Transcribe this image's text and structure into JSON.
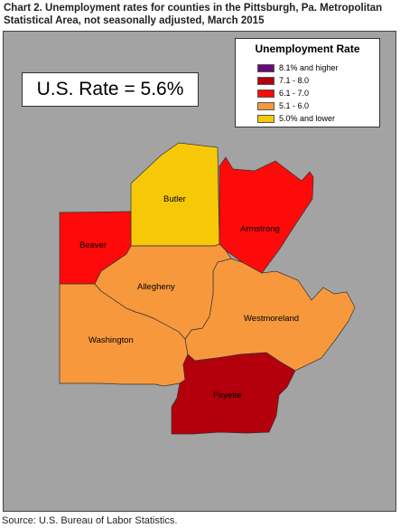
{
  "title": "Chart 2. Unemployment rates for counties in the Pittsburgh, Pa. Metropolitan Statistical Area, not seasonally adjusted, March 2015",
  "us_rate_label": "U.S. Rate = 5.6%",
  "legend": {
    "title": "Unemployment Rate",
    "items": [
      {
        "label": "8.1% and higher",
        "color": "#6a0a7a"
      },
      {
        "label": "7.1 - 8.0",
        "color": "#b3000c"
      },
      {
        "label": "6.1 - 7.0",
        "color": "#ff0a0a"
      },
      {
        "label": "5.1 - 6.0",
        "color": "#f7983d"
      },
      {
        "label": "5.0% and lower",
        "color": "#f7c808"
      }
    ]
  },
  "counties": [
    {
      "name": "Butler",
      "range": "5.0% and lower",
      "color": "#f7c808"
    },
    {
      "name": "Beaver",
      "range": "6.1 - 7.0",
      "color": "#ff0a0a"
    },
    {
      "name": "Armstrong",
      "range": "6.1 - 7.0",
      "color": "#ff0a0a"
    },
    {
      "name": "Allegheny",
      "range": "5.1 - 6.0",
      "color": "#f7983d"
    },
    {
      "name": "Washington",
      "range": "5.1 - 6.0",
      "color": "#f7983d"
    },
    {
      "name": "Westmoreland",
      "range": "5.1 - 6.0",
      "color": "#f7983d"
    },
    {
      "name": "Fayette",
      "range": "7.1 - 8.0",
      "color": "#b3000c"
    }
  ],
  "source": "Source: U.S. Bureau of Labor Statistics."
}
